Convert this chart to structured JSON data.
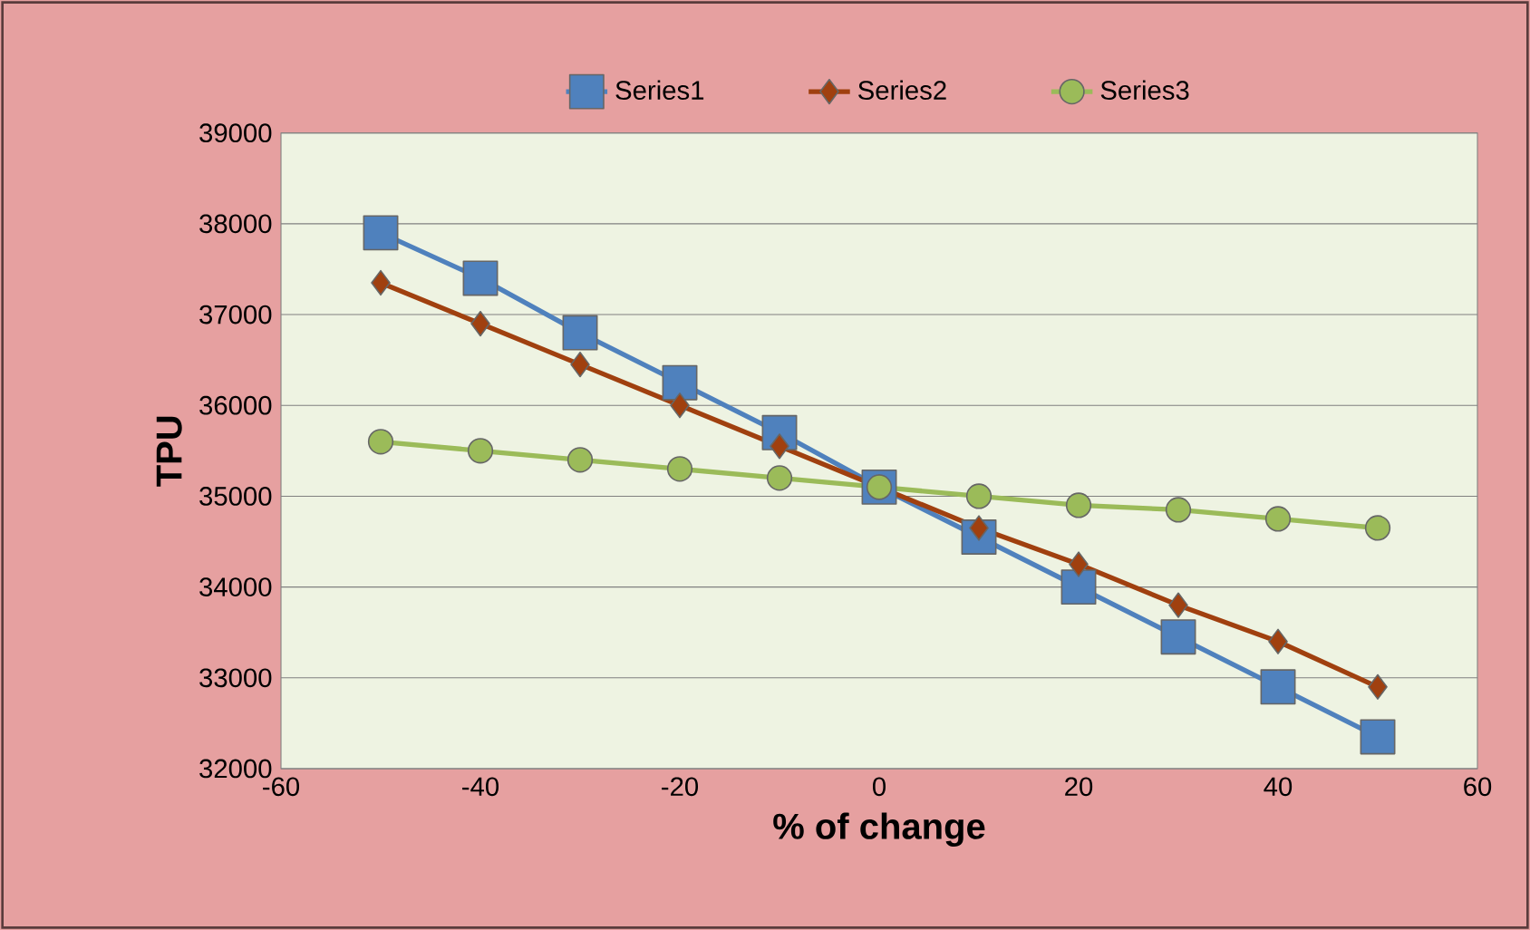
{
  "chart_data": {
    "type": "line",
    "xlabel": "% of change",
    "ylabel": "TPU",
    "x": [
      -50,
      -40,
      -30,
      -20,
      -10,
      0,
      10,
      20,
      30,
      40,
      50
    ],
    "xlim": [
      -60,
      60
    ],
    "xticks": [
      -60,
      -40,
      -20,
      0,
      20,
      40,
      60
    ],
    "ylim": [
      32000,
      39000
    ],
    "yticks": [
      32000,
      33000,
      34000,
      35000,
      36000,
      37000,
      38000,
      39000
    ],
    "grid": "y",
    "legend": "top",
    "series": [
      {
        "name": "Series1",
        "color": "#4f81bd",
        "marker": "square",
        "values": [
          37900,
          37400,
          36800,
          36250,
          35700,
          35100,
          34550,
          34000,
          33450,
          32900,
          32350
        ]
      },
      {
        "name": "Series2",
        "color": "#a0400f",
        "marker": "diamond",
        "values": [
          37350,
          36900,
          36450,
          36000,
          35550,
          35100,
          34650,
          34250,
          33800,
          33400,
          32900
        ]
      },
      {
        "name": "Series3",
        "color": "#9bbb59",
        "marker": "circle",
        "values": [
          35600,
          35500,
          35400,
          35300,
          35200,
          35100,
          35000,
          34900,
          34850,
          34750,
          34650
        ]
      }
    ]
  }
}
